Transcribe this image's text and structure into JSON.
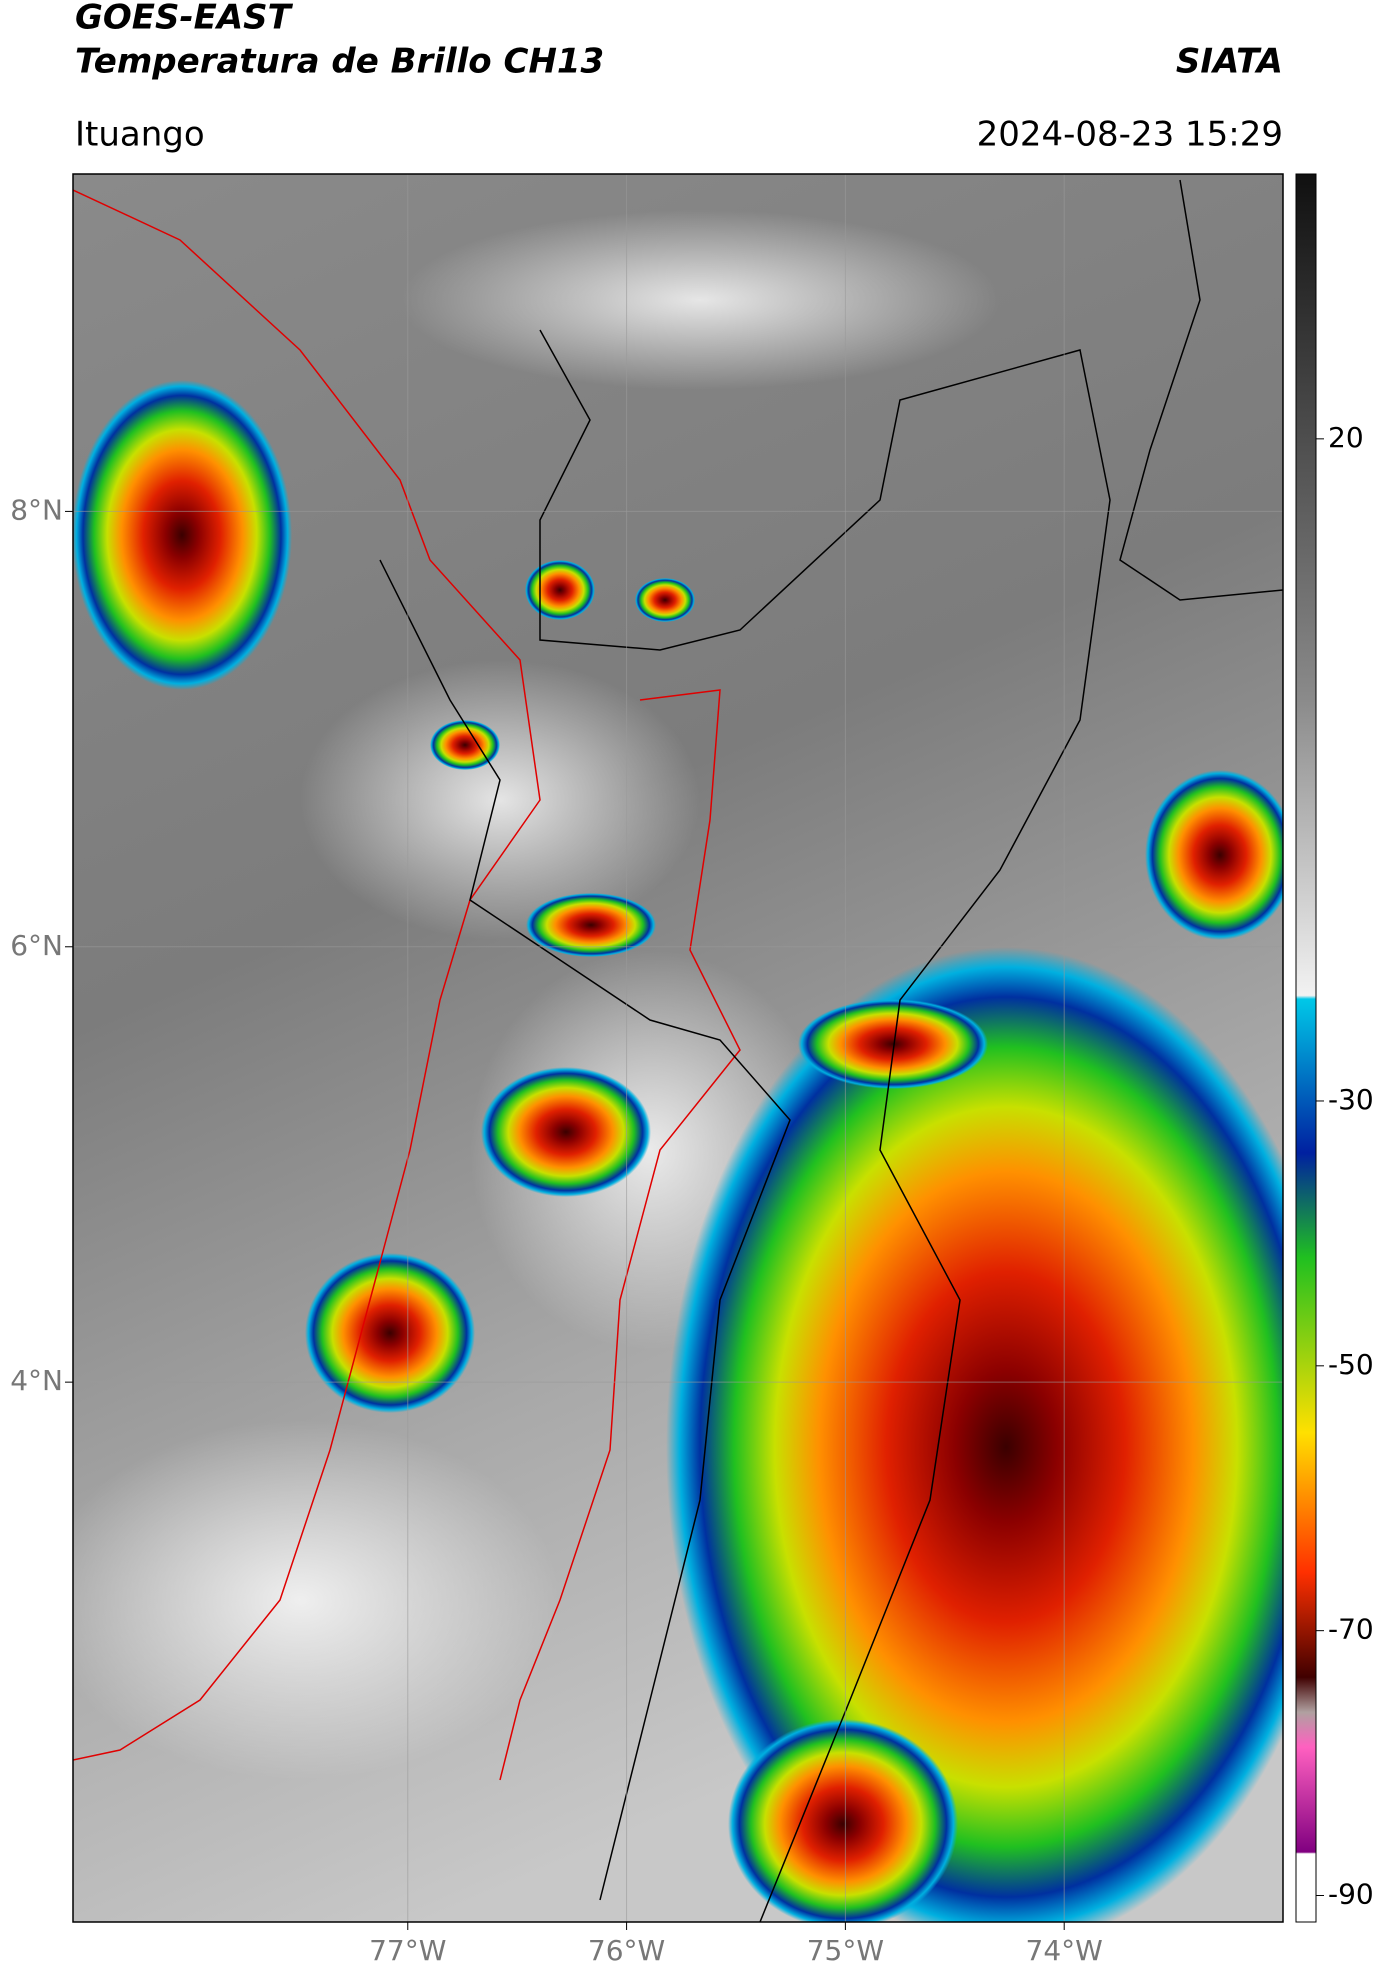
{
  "header": {
    "line1": "GOES-EAST",
    "line2": "Temperatura de Brillo CH13",
    "brand": "SIATA",
    "location": "Ituango",
    "datetime": "2024-08-23 15:29"
  },
  "map": {
    "xlim": [
      -78.53,
      -73.0
    ],
    "ylim": [
      1.52,
      9.55
    ],
    "xticks": [
      {
        "value": -77,
        "label": "77°W"
      },
      {
        "value": -76,
        "label": "76°W"
      },
      {
        "value": -75,
        "label": "75°W"
      },
      {
        "value": -74,
        "label": "74°W"
      }
    ],
    "yticks": [
      {
        "value": 8,
        "label": "8°N"
      },
      {
        "value": 6,
        "label": "6°N"
      },
      {
        "value": 4,
        "label": "4°N"
      }
    ],
    "grid": true
  },
  "colorbar": {
    "lim": [
      -92,
      40
    ],
    "ticks": [
      20,
      -30,
      -50,
      -70,
      -90
    ]
  }
}
